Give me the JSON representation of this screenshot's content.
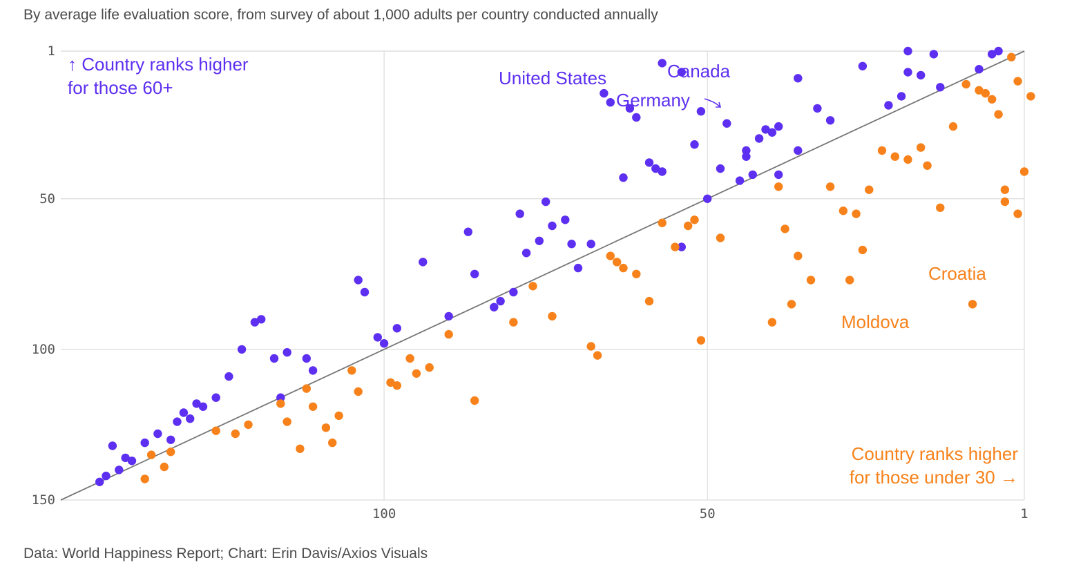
{
  "subtitle": "By average life evaluation score, from survey of about 1,000 adults per country conducted annually",
  "source": "Data: World Happiness Report; Chart: Erin Davis/Axios Visuals",
  "colors": {
    "older_higher": "#5d2ff0",
    "younger_higher": "#f7821b",
    "diagonal": "#777777",
    "grid": "#dcdcdc"
  },
  "annotations": {
    "corner_top": [
      "↑ Country ranks higher",
      "for those 60+"
    ],
    "corner_bottom": [
      "Country ranks higher",
      "for those under 30 →"
    ],
    "united_states": "United States",
    "canada": "Canada",
    "germany": "Germany",
    "croatia": "Croatia",
    "moldova": "Moldova"
  },
  "chart_data": {
    "type": "scatter",
    "x_direction": "reversed",
    "y_direction": "reversed",
    "xlim": [
      150,
      1
    ],
    "ylim": [
      1,
      150
    ],
    "x_ticks": [
      100,
      50,
      1
    ],
    "y_ticks": [
      1,
      50,
      100,
      150
    ],
    "grid": true,
    "diagonal_reference": true,
    "series": [
      {
        "color": "#5d2ff0",
        "points": [
          [
            144,
            144
          ],
          [
            143,
            142
          ],
          [
            142,
            132
          ],
          [
            141,
            140
          ],
          [
            140,
            136
          ],
          [
            139,
            137
          ],
          [
            137,
            131
          ],
          [
            135,
            128
          ],
          [
            133,
            130
          ],
          [
            132,
            124
          ],
          [
            131,
            121
          ],
          [
            130,
            123
          ],
          [
            129,
            118
          ],
          [
            128,
            119
          ],
          [
            126,
            116
          ],
          [
            124,
            109
          ],
          [
            122,
            100
          ],
          [
            120,
            91
          ],
          [
            119,
            90
          ],
          [
            117,
            103
          ],
          [
            116,
            116
          ],
          [
            115,
            101
          ],
          [
            112,
            103
          ],
          [
            111,
            107
          ],
          [
            104,
            77
          ],
          [
            103,
            81
          ],
          [
            101,
            96
          ],
          [
            100,
            98
          ],
          [
            98,
            93
          ],
          [
            94,
            71
          ],
          [
            90,
            89
          ],
          [
            87,
            61
          ],
          [
            86,
            75
          ],
          [
            83,
            86
          ],
          [
            82,
            84
          ],
          [
            80,
            81
          ],
          [
            79,
            55
          ],
          [
            78,
            68
          ],
          [
            76,
            64
          ],
          [
            75,
            51
          ],
          [
            74,
            59
          ],
          [
            72,
            57
          ],
          [
            71,
            65
          ],
          [
            70,
            73
          ],
          [
            68,
            65
          ],
          [
            65,
            18
          ],
          [
            63,
            43
          ],
          [
            59,
            38
          ],
          [
            58,
            40
          ],
          [
            57,
            41
          ],
          [
            54,
            66
          ],
          [
            44,
            36
          ],
          [
            42,
            30
          ],
          [
            40,
            28
          ],
          [
            39,
            26
          ],
          [
            52,
            32
          ],
          [
            51,
            21
          ],
          [
            48,
            40
          ],
          [
            66,
            15
          ],
          [
            62,
            20
          ],
          [
            54,
            8
          ],
          [
            57,
            5
          ],
          [
            61,
            23
          ],
          [
            50,
            50
          ],
          [
            47,
            25
          ],
          [
            45,
            44
          ],
          [
            44,
            34
          ],
          [
            43,
            42
          ],
          [
            41,
            27
          ],
          [
            39,
            42
          ],
          [
            36,
            34
          ],
          [
            36,
            10
          ],
          [
            33,
            20
          ],
          [
            31,
            24
          ],
          [
            26,
            6
          ],
          [
            22,
            19
          ],
          [
            20,
            16
          ],
          [
            19,
            8
          ],
          [
            19,
            1
          ],
          [
            17,
            9
          ],
          [
            15,
            2
          ],
          [
            14,
            13
          ],
          [
            8,
            7
          ],
          [
            6,
            2
          ],
          [
            5,
            1
          ]
        ]
      },
      {
        "color": "#f7821b",
        "points": [
          [
            137,
            143
          ],
          [
            136,
            135
          ],
          [
            134,
            139
          ],
          [
            133,
            134
          ],
          [
            126,
            127
          ],
          [
            123,
            128
          ],
          [
            121,
            125
          ],
          [
            116,
            118
          ],
          [
            115,
            124
          ],
          [
            113,
            133
          ],
          [
            112,
            113
          ],
          [
            111,
            119
          ],
          [
            109,
            126
          ],
          [
            108,
            131
          ],
          [
            107,
            122
          ],
          [
            105,
            107
          ],
          [
            104,
            114
          ],
          [
            99,
            111
          ],
          [
            98,
            112
          ],
          [
            96,
            103
          ],
          [
            95,
            108
          ],
          [
            93,
            106
          ],
          [
            90,
            95
          ],
          [
            86,
            117
          ],
          [
            80,
            91
          ],
          [
            77,
            79
          ],
          [
            74,
            89
          ],
          [
            68,
            99
          ],
          [
            67,
            102
          ],
          [
            65,
            69
          ],
          [
            64,
            71
          ],
          [
            63,
            73
          ],
          [
            61,
            75
          ],
          [
            59,
            84
          ],
          [
            57,
            58
          ],
          [
            55,
            66
          ],
          [
            53,
            59
          ],
          [
            52,
            57
          ],
          [
            51,
            97
          ],
          [
            48,
            63
          ],
          [
            40,
            91
          ],
          [
            39,
            46
          ],
          [
            38,
            60
          ],
          [
            37,
            85
          ],
          [
            36,
            69
          ],
          [
            34,
            77
          ],
          [
            31,
            46
          ],
          [
            29,
            54
          ],
          [
            28,
            77
          ],
          [
            27,
            55
          ],
          [
            26,
            67
          ],
          [
            25,
            47
          ],
          [
            23,
            34
          ],
          [
            21,
            36
          ],
          [
            19,
            37
          ],
          [
            17,
            33
          ],
          [
            16,
            39
          ],
          [
            14,
            53
          ],
          [
            12,
            26
          ],
          [
            10,
            12
          ],
          [
            9,
            85
          ],
          [
            8,
            14
          ],
          [
            7,
            15
          ],
          [
            6,
            17
          ],
          [
            5,
            22
          ],
          [
            4,
            47
          ],
          [
            4,
            51
          ],
          [
            3,
            3
          ],
          [
            2,
            11
          ],
          [
            2,
            55
          ],
          [
            1,
            41
          ],
          [
            0,
            16
          ]
        ]
      }
    ]
  }
}
